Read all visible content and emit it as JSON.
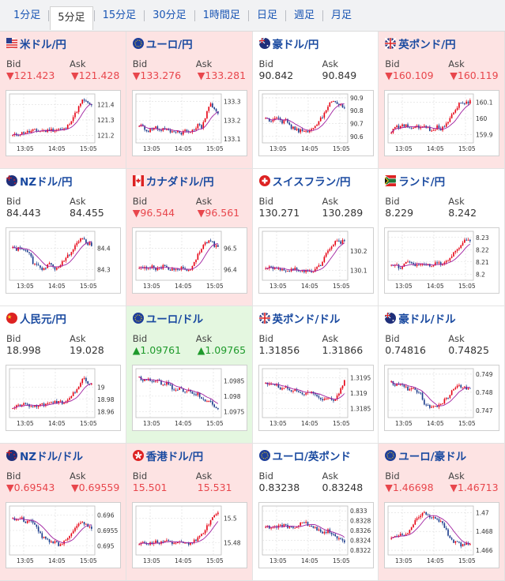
{
  "tabs": [
    {
      "label": "1分足",
      "active": false
    },
    {
      "label": "5分足",
      "active": true
    },
    {
      "label": "15分足",
      "active": false
    },
    {
      "label": "30分足",
      "active": false
    },
    {
      "label": "1時間足",
      "active": false
    },
    {
      "label": "日足",
      "active": false
    },
    {
      "label": "週足",
      "active": false
    },
    {
      "label": "月足",
      "active": false
    }
  ],
  "labels": {
    "bid": "Bid",
    "ask": "Ask"
  },
  "colors": {
    "down_bg": "#fde3e3",
    "up_bg": "#e4f7e0",
    "down_text": "#e8464c",
    "up_text": "#1e9a2b",
    "candle_up": "#e60012",
    "candle_down": "#1a3b8c",
    "ma": "#a020a0",
    "title": "#1a4aa0"
  },
  "pairs": [
    {
      "name": "米ドル/円",
      "flag": "us-flag-icon",
      "trend": "down",
      "bid": "▼121.423",
      "ask": "▼121.428",
      "chart_data": {
        "type": "candlestick",
        "x_ticks": [
          "13:05",
          "14:05",
          "15:05"
        ],
        "y_ticks": [
          "121.4",
          "121.3",
          "121.2"
        ],
        "ylim": [
          121.15,
          121.47
        ],
        "shape": [
          0.1,
          0.12,
          0.15,
          0.18,
          0.18,
          0.22,
          0.2,
          0.22,
          0.2,
          0.24,
          0.22,
          0.25,
          0.23,
          0.28,
          0.45,
          0.6,
          0.78,
          0.95,
          0.85,
          0.8
        ]
      }
    },
    {
      "name": "ユーロ/円",
      "flag": "eu-flag-icon",
      "trend": "down",
      "bid": "▼133.276",
      "ask": "▼133.281",
      "chart_data": {
        "type": "candlestick",
        "x_ticks": [
          "13:05",
          "14:05",
          "15:05"
        ],
        "y_ticks": [
          "133.3",
          "133.2",
          "133.1"
        ],
        "ylim": [
          133.08,
          133.34
        ],
        "shape": [
          0.35,
          0.3,
          0.2,
          0.25,
          0.3,
          0.22,
          0.28,
          0.2,
          0.18,
          0.22,
          0.15,
          0.22,
          0.18,
          0.2,
          0.35,
          0.3,
          0.55,
          0.85,
          0.7,
          0.65
        ]
      }
    },
    {
      "name": "豪ドル/円",
      "flag": "au-flag-icon",
      "trend": "flat",
      "bid": "90.842",
      "ask": "90.849",
      "chart_data": {
        "type": "candlestick",
        "x_ticks": [
          "13:05",
          "14:05",
          "15:05"
        ],
        "y_ticks": [
          "90.9",
          "90.8",
          "90.7",
          "90.6"
        ],
        "ylim": [
          90.55,
          90.93
        ],
        "shape": [
          0.5,
          0.45,
          0.5,
          0.55,
          0.42,
          0.45,
          0.3,
          0.25,
          0.2,
          0.25,
          0.15,
          0.22,
          0.35,
          0.45,
          0.6,
          0.8,
          0.9,
          0.85,
          0.8,
          0.75
        ]
      }
    },
    {
      "name": "英ポンド/円",
      "flag": "uk-flag-icon",
      "trend": "down",
      "bid": "▼160.109",
      "ask": "▼160.119",
      "chart_data": {
        "type": "candlestick",
        "x_ticks": [
          "13:05",
          "14:05",
          "15:05"
        ],
        "y_ticks": [
          "160.1",
          "160",
          "159.9"
        ],
        "ylim": [
          159.85,
          160.15
        ],
        "shape": [
          0.2,
          0.3,
          0.28,
          0.35,
          0.3,
          0.25,
          0.3,
          0.28,
          0.32,
          0.25,
          0.22,
          0.3,
          0.25,
          0.35,
          0.5,
          0.65,
          0.8,
          0.9,
          0.85,
          0.9
        ]
      }
    },
    {
      "name": "NZドル/円",
      "flag": "nz-flag-icon",
      "trend": "flat",
      "bid": "84.443",
      "ask": "84.455",
      "chart_data": {
        "type": "candlestick",
        "x_ticks": [
          "13:05",
          "14:05",
          "15:05"
        ],
        "y_ticks": [
          "84.4",
          "84.3"
        ],
        "ylim": [
          84.25,
          84.48
        ],
        "shape": [
          0.7,
          0.65,
          0.7,
          0.6,
          0.55,
          0.3,
          0.25,
          0.2,
          0.25,
          0.3,
          0.2,
          0.25,
          0.35,
          0.45,
          0.6,
          0.75,
          0.85,
          0.9,
          0.8,
          0.75
        ]
      }
    },
    {
      "name": "カナダドル/円",
      "flag": "ca-flag-icon",
      "trend": "down",
      "bid": "▼96.544",
      "ask": "▼96.561",
      "chart_data": {
        "type": "candlestick",
        "x_ticks": [
          "13:05",
          "14:05",
          "15:05"
        ],
        "y_ticks": [
          "96.5",
          "96.4"
        ],
        "ylim": [
          96.35,
          96.58
        ],
        "shape": [
          0.25,
          0.2,
          0.22,
          0.25,
          0.2,
          0.22,
          0.25,
          0.18,
          0.2,
          0.15,
          0.22,
          0.2,
          0.15,
          0.3,
          0.5,
          0.65,
          0.8,
          0.9,
          0.75,
          0.7
        ]
      }
    },
    {
      "name": "スイスフラン/円",
      "flag": "ch-flag-icon",
      "trend": "flat",
      "bid": "130.271",
      "ask": "130.289",
      "chart_data": {
        "type": "candlestick",
        "x_ticks": [
          "13:05",
          "14:05",
          "15:05"
        ],
        "y_ticks": [
          "130.2",
          "130.1"
        ],
        "ylim": [
          130.05,
          130.3
        ],
        "shape": [
          0.2,
          0.22,
          0.2,
          0.18,
          0.2,
          0.15,
          0.18,
          0.2,
          0.1,
          0.12,
          0.15,
          0.12,
          0.2,
          0.25,
          0.45,
          0.6,
          0.75,
          0.85,
          0.8,
          0.9
        ]
      }
    },
    {
      "name": "ランド/円",
      "flag": "za-flag-icon",
      "trend": "flat",
      "bid": "8.229",
      "ask": "8.242",
      "chart_data": {
        "type": "candlestick",
        "x_ticks": [
          "13:05",
          "14:05",
          "15:05"
        ],
        "y_ticks": [
          "8.23",
          "8.22",
          "8.21",
          "8.2"
        ],
        "ylim": [
          8.195,
          8.235
        ],
        "shape": [
          0.25,
          0.3,
          0.2,
          0.3,
          0.35,
          0.3,
          0.28,
          0.32,
          0.3,
          0.28,
          0.3,
          0.32,
          0.3,
          0.35,
          0.45,
          0.55,
          0.65,
          0.8,
          0.9,
          0.85
        ]
      }
    },
    {
      "name": "人民元/円",
      "flag": "cn-flag-icon",
      "trend": "flat",
      "bid": "18.998",
      "ask": "19.028",
      "chart_data": {
        "type": "candlestick",
        "x_ticks": [
          "13:05",
          "14:05",
          "15:05"
        ],
        "y_ticks": [
          "19",
          "18.98",
          "18.96"
        ],
        "ylim": [
          18.95,
          19.03
        ],
        "shape": [
          0.15,
          0.2,
          0.22,
          0.25,
          0.22,
          0.18,
          0.2,
          0.25,
          0.22,
          0.25,
          0.28,
          0.3,
          0.28,
          0.35,
          0.45,
          0.55,
          0.7,
          0.85,
          0.75,
          0.7
        ]
      }
    },
    {
      "name": "ユーロ/ドル",
      "flag": "eu-flag-icon",
      "trend": "up",
      "bid": "▲1.09761",
      "ask": "▲1.09765",
      "chart_data": {
        "type": "candlestick",
        "x_ticks": [
          "13:05",
          "14:05",
          "15:05"
        ],
        "y_ticks": [
          "1.0985",
          "1.098",
          "1.0975"
        ],
        "ylim": [
          1.0973,
          1.0989
        ],
        "shape": [
          0.85,
          0.8,
          0.82,
          0.78,
          0.8,
          0.75,
          0.7,
          0.75,
          0.6,
          0.55,
          0.62,
          0.5,
          0.55,
          0.45,
          0.5,
          0.4,
          0.3,
          0.35,
          0.2,
          0.15
        ]
      }
    },
    {
      "name": "英ポンド/ドル",
      "flag": "uk-flag-icon",
      "trend": "flat",
      "bid": "1.31856",
      "ask": "1.31866",
      "chart_data": {
        "type": "candlestick",
        "x_ticks": [
          "13:05",
          "14:05",
          "15:05"
        ],
        "y_ticks": [
          "1.3195",
          "1.319",
          "1.3185"
        ],
        "ylim": [
          1.3182,
          1.3198
        ],
        "shape": [
          0.75,
          0.7,
          0.72,
          0.65,
          0.6,
          0.65,
          0.55,
          0.6,
          0.5,
          0.45,
          0.55,
          0.5,
          0.45,
          0.4,
          0.35,
          0.4,
          0.3,
          0.35,
          0.6,
          0.8
        ]
      }
    },
    {
      "name": "豪ドル/ドル",
      "flag": "au-flag-icon",
      "trend": "flat",
      "bid": "0.74816",
      "ask": "0.74825",
      "chart_data": {
        "type": "candlestick",
        "x_ticks": [
          "13:05",
          "14:05",
          "15:05"
        ],
        "y_ticks": [
          "0.749",
          "0.748",
          "0.747"
        ],
        "ylim": [
          0.7466,
          0.7493
        ],
        "shape": [
          0.75,
          0.7,
          0.72,
          0.68,
          0.6,
          0.65,
          0.55,
          0.5,
          0.25,
          0.2,
          0.15,
          0.2,
          0.25,
          0.35,
          0.45,
          0.6,
          0.7,
          0.65,
          0.6,
          0.58
        ]
      }
    },
    {
      "name": "NZドル/ドル",
      "flag": "nz-flag-icon",
      "trend": "down",
      "bid": "▼0.69543",
      "ask": "▼0.69559",
      "chart_data": {
        "type": "candlestick",
        "x_ticks": [
          "13:05",
          "14:05",
          "15:05"
        ],
        "y_ticks": [
          "0.696",
          "0.6955",
          "0.695"
        ],
        "ylim": [
          0.6947,
          0.6963
        ],
        "shape": [
          0.8,
          0.75,
          0.8,
          0.7,
          0.75,
          0.65,
          0.55,
          0.35,
          0.3,
          0.2,
          0.25,
          0.15,
          0.2,
          0.3,
          0.45,
          0.55,
          0.65,
          0.7,
          0.6,
          0.55
        ]
      }
    },
    {
      "name": "香港ドル/円",
      "flag": "hk-flag-icon",
      "trend": "down",
      "bid": "15.501",
      "ask": "15.531",
      "chart_data": {
        "type": "candlestick",
        "x_ticks": [
          "13:05",
          "14:05",
          "15:05"
        ],
        "y_ticks": [
          "15.5",
          "15.48"
        ],
        "ylim": [
          15.47,
          15.51
        ],
        "shape": [
          0.15,
          0.2,
          0.18,
          0.22,
          0.25,
          0.2,
          0.22,
          0.25,
          0.22,
          0.2,
          0.25,
          0.22,
          0.2,
          0.25,
          0.3,
          0.4,
          0.55,
          0.7,
          0.85,
          0.9
        ]
      }
    },
    {
      "name": "ユーロ/英ポンド",
      "flag": "eu-flag-icon",
      "trend": "flat",
      "bid": "0.83238",
      "ask": "0.83248",
      "chart_data": {
        "type": "candlestick",
        "x_ticks": [
          "13:05",
          "14:05",
          "15:05"
        ],
        "y_ticks": [
          "0.833",
          "0.8328",
          "0.8326",
          "0.8324",
          "0.8322"
        ],
        "ylim": [
          0.8321,
          0.8331
        ],
        "shape": [
          0.6,
          0.55,
          0.6,
          0.58,
          0.62,
          0.6,
          0.55,
          0.6,
          0.62,
          0.7,
          0.65,
          0.6,
          0.55,
          0.5,
          0.45,
          0.5,
          0.4,
          0.35,
          0.3,
          0.25
        ]
      }
    },
    {
      "name": "ユーロ/豪ドル",
      "flag": "eu-flag-icon",
      "trend": "down",
      "bid": "▼1.46698",
      "ask": "▼1.46713",
      "chart_data": {
        "type": "candlestick",
        "x_ticks": [
          "13:05",
          "14:05",
          "15:05"
        ],
        "y_ticks": [
          "1.47",
          "1.468",
          "1.466"
        ],
        "ylim": [
          1.4655,
          1.4707
        ],
        "shape": [
          0.3,
          0.35,
          0.4,
          0.35,
          0.45,
          0.6,
          0.75,
          0.85,
          0.9,
          0.85,
          0.8,
          0.75,
          0.7,
          0.55,
          0.35,
          0.25,
          0.2,
          0.15,
          0.2,
          0.18
        ]
      }
    }
  ]
}
